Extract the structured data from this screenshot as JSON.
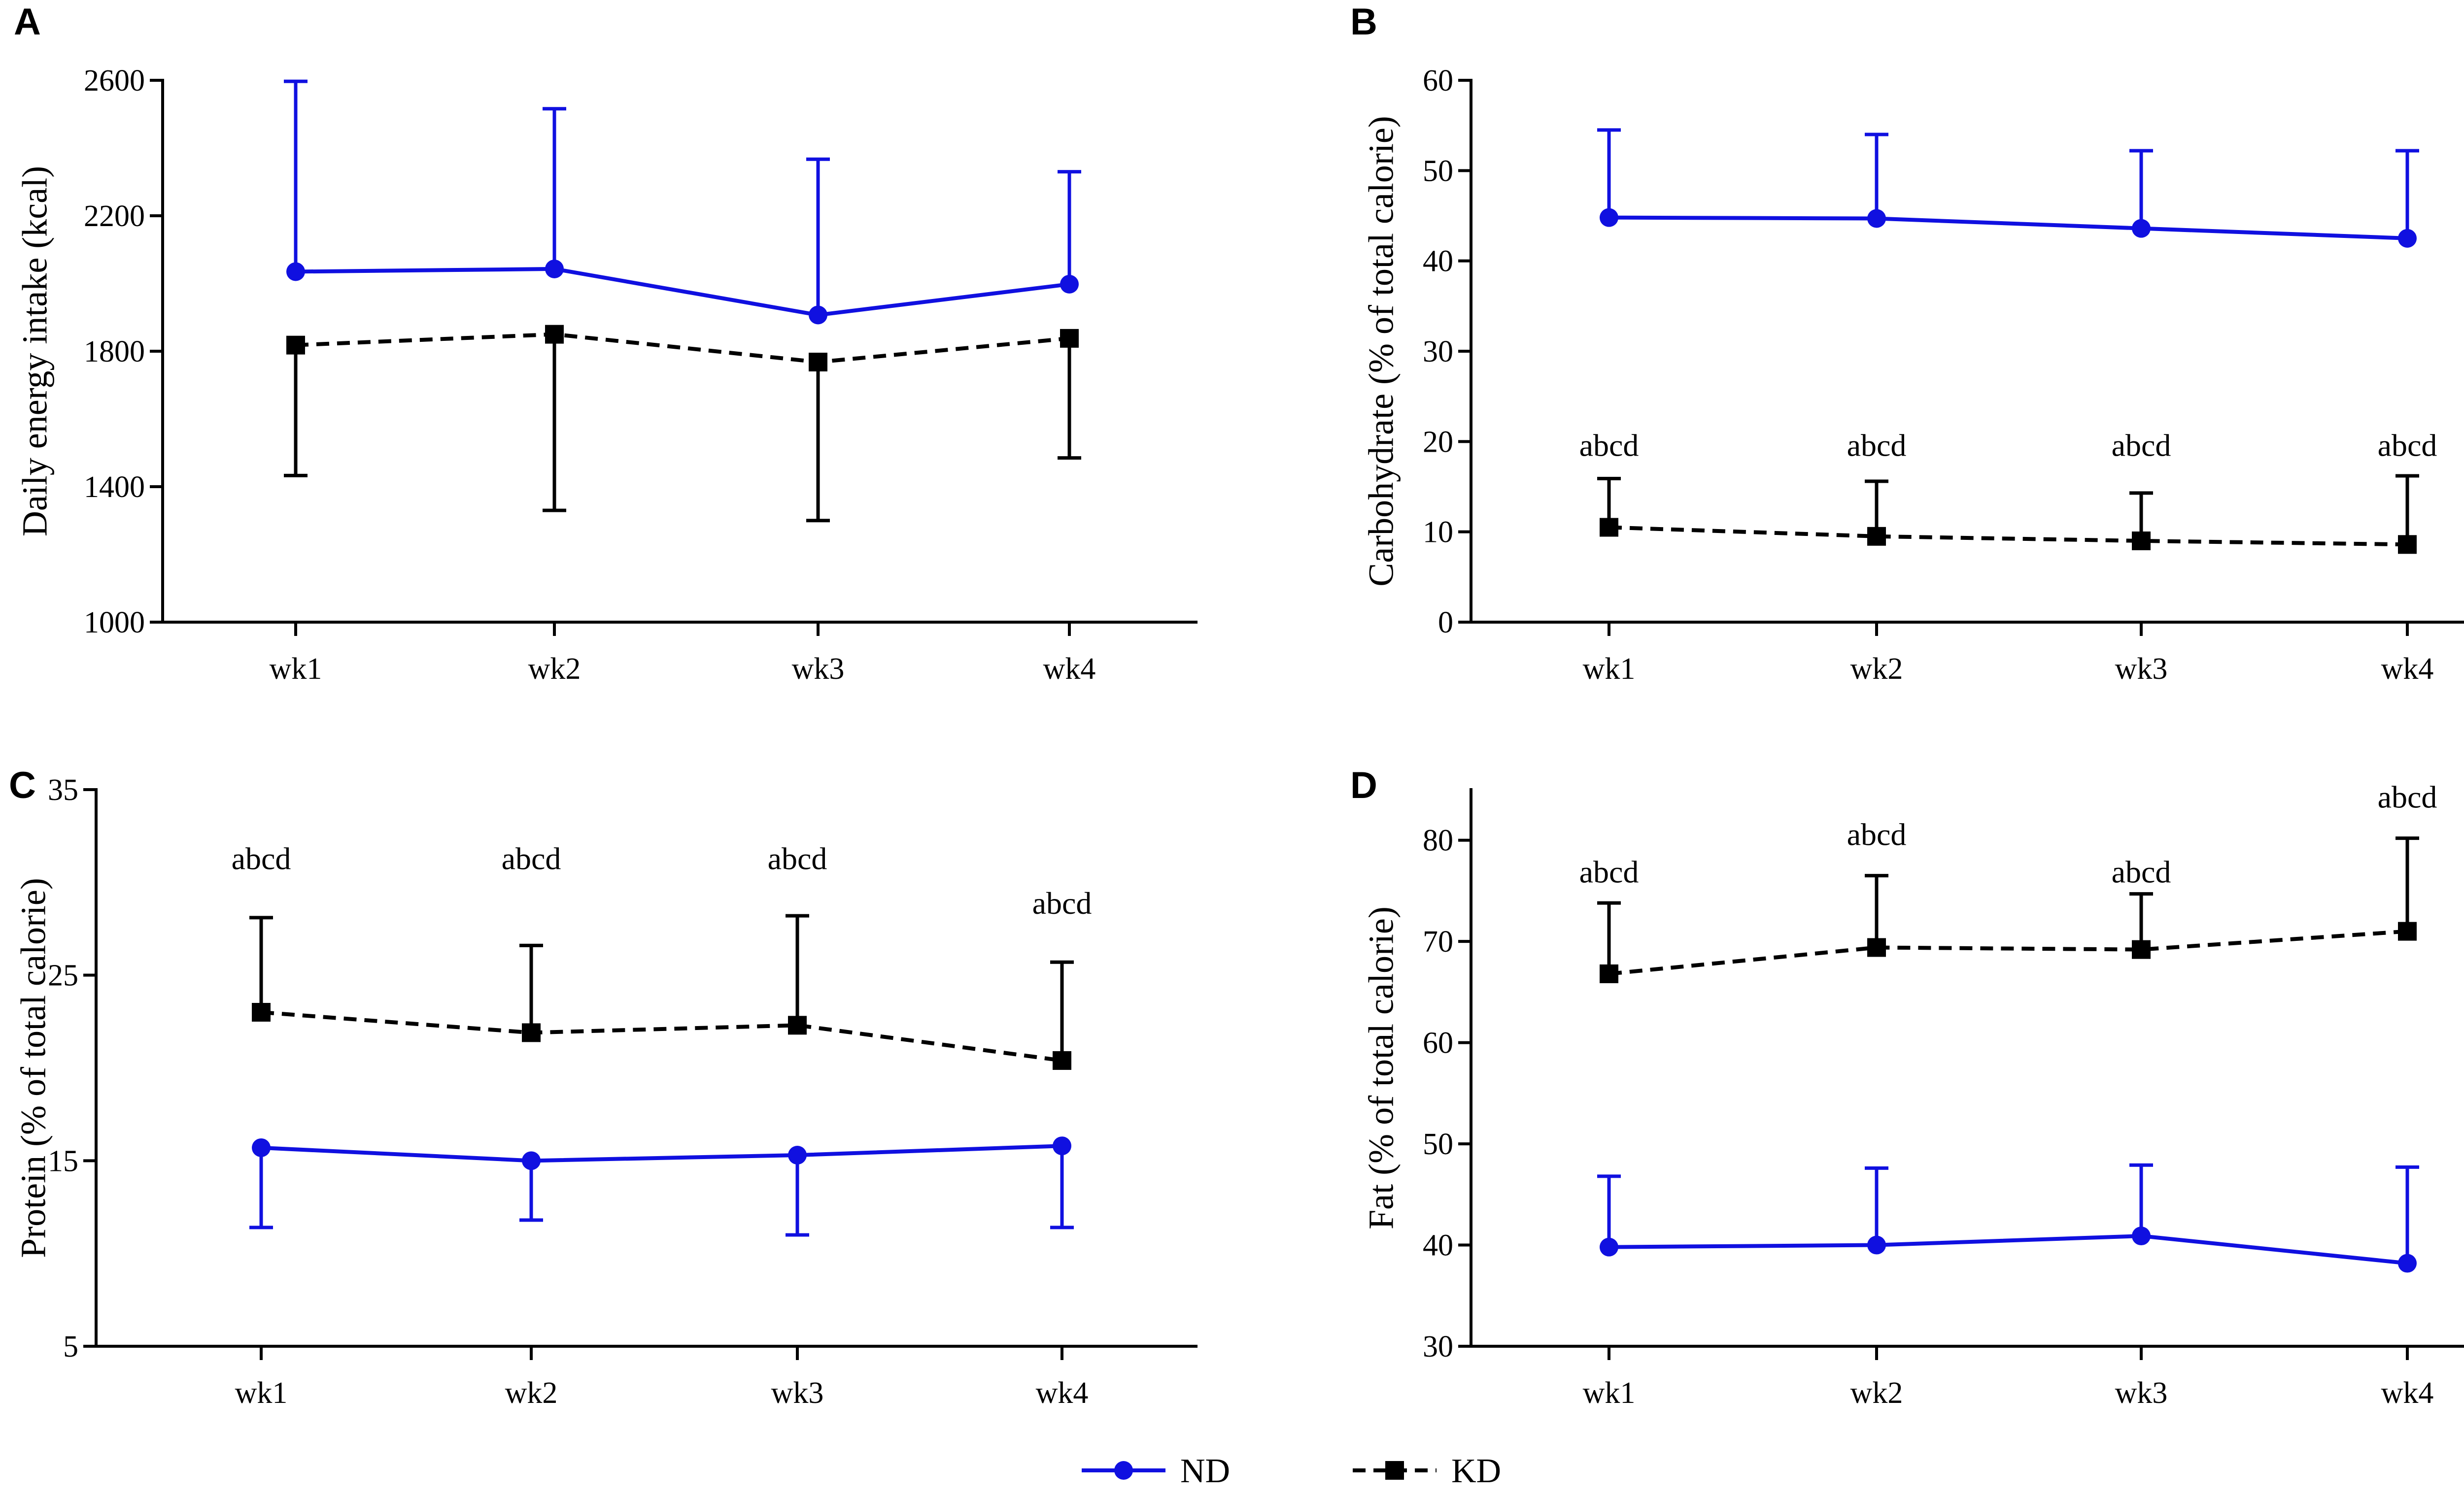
{
  "colors": {
    "nd": "#1010e0",
    "kd": "#000000"
  },
  "legend": {
    "items": [
      {
        "key": "nd",
        "label": "ND",
        "marker": "circle",
        "dash": "solid"
      },
      {
        "key": "kd",
        "label": "KD",
        "marker": "square",
        "dash": "dashed"
      }
    ]
  },
  "chart_data": [
    {
      "panel": "A",
      "type": "line",
      "title": "",
      "xlabel": "",
      "ylabel": "Daily energy intake (kcal)",
      "categories": [
        "wk1",
        "wk2",
        "wk3",
        "wk4"
      ],
      "ylim": [
        1000,
        2600
      ],
      "yticks": [
        1000,
        1400,
        1800,
        2200,
        2600
      ],
      "series": [
        {
          "name": "ND",
          "values": [
            2035,
            2043,
            1907,
            1998
          ],
          "error_upper": [
            2597,
            2516,
            2367,
            2330
          ],
          "error_side": "up"
        },
        {
          "name": "KD",
          "values": [
            1818,
            1850,
            1768,
            1838
          ],
          "error_upper": [
            1433,
            1330,
            1300,
            1485
          ],
          "error_side": "down"
        }
      ],
      "annotations": []
    },
    {
      "panel": "B",
      "type": "line",
      "title": "",
      "xlabel": "",
      "ylabel": "Carbohydrate (% of total calorie)",
      "categories": [
        "wk1",
        "wk2",
        "wk3",
        "wk4"
      ],
      "ylim": [
        0,
        60
      ],
      "yticks": [
        0,
        10,
        20,
        30,
        40,
        50,
        60
      ],
      "series": [
        {
          "name": "ND",
          "values": [
            44.8,
            44.7,
            43.6,
            42.5
          ],
          "error_upper": [
            54.5,
            54.0,
            52.2,
            52.2
          ],
          "error_side": "up"
        },
        {
          "name": "KD",
          "values": [
            10.5,
            9.5,
            9.0,
            8.6
          ],
          "error_upper": [
            15.9,
            15.6,
            14.3,
            16.2
          ],
          "error_side": "up"
        }
      ],
      "annotations": [
        {
          "category": "wk1",
          "text": "abcd",
          "y": 19.6
        },
        {
          "category": "wk2",
          "text": "abcd",
          "y": 19.6
        },
        {
          "category": "wk3",
          "text": "abcd",
          "y": 19.6
        },
        {
          "category": "wk4",
          "text": "abcd",
          "y": 19.6
        }
      ]
    },
    {
      "panel": "C",
      "type": "line",
      "title": "",
      "xlabel": "",
      "ylabel": "Protein (% of total calorie)",
      "categories": [
        "wk1",
        "wk2",
        "wk3",
        "wk4"
      ],
      "ylim": [
        5,
        35
      ],
      "yticks": [
        5,
        15,
        25,
        35
      ],
      "series": [
        {
          "name": "ND",
          "values": [
            15.7,
            15.0,
            15.3,
            15.8
          ],
          "error_upper": [
            11.4,
            11.8,
            11.0,
            11.4
          ],
          "error_side": "down"
        },
        {
          "name": "KD",
          "values": [
            23.0,
            21.9,
            22.3,
            20.4
          ],
          "error_upper": [
            28.1,
            26.6,
            28.2,
            25.7
          ],
          "error_side": "up"
        }
      ],
      "annotations": [
        {
          "category": "wk1",
          "text": "abcd",
          "y": 31.3
        },
        {
          "category": "wk2",
          "text": "abcd",
          "y": 31.3
        },
        {
          "category": "wk3",
          "text": "abcd",
          "y": 31.3
        },
        {
          "category": "wk4",
          "text": "abcd",
          "y": 28.9
        }
      ]
    },
    {
      "panel": "D",
      "type": "line",
      "title": "",
      "xlabel": "",
      "ylabel": "Fat (% of total calorie)",
      "categories": [
        "wk1",
        "wk2",
        "wk3",
        "wk4"
      ],
      "ylim": [
        30,
        85
      ],
      "yticks": [
        30,
        40,
        50,
        60,
        70,
        80
      ],
      "series": [
        {
          "name": "ND",
          "values": [
            39.8,
            40.0,
            40.9,
            38.2
          ],
          "error_upper": [
            46.8,
            47.6,
            47.9,
            47.7
          ],
          "error_side": "up"
        },
        {
          "name": "KD",
          "values": [
            66.8,
            69.4,
            69.2,
            71.0
          ],
          "error_upper": [
            73.8,
            76.5,
            74.7,
            80.2
          ],
          "error_side": "up"
        }
      ],
      "annotations": [
        {
          "category": "wk1",
          "text": "abcd",
          "y": 76.9
        },
        {
          "category": "wk2",
          "text": "abcd",
          "y": 80.6
        },
        {
          "category": "wk3",
          "text": "abcd",
          "y": 76.9
        },
        {
          "category": "wk4",
          "text": "abcd",
          "y": 84.3
        }
      ]
    }
  ]
}
